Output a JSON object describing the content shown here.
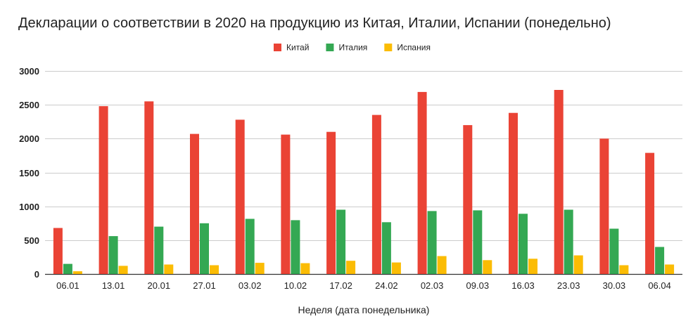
{
  "chart_data": {
    "type": "bar",
    "title": "Декларации о соответствии в 2020 на продукцию из Китая, Италии, Испании (понедельно)",
    "xlabel": "Неделя (дата понедельника)",
    "ylabel": "",
    "ylim": [
      0,
      3000
    ],
    "yticks": [
      0,
      500,
      1000,
      1500,
      2000,
      2500,
      3000
    ],
    "grid": true,
    "legend_position": "top-center",
    "categories": [
      "06.01",
      "13.01",
      "20.01",
      "27.01",
      "03.02",
      "10.02",
      "17.02",
      "24.02",
      "02.03",
      "09.03",
      "16.03",
      "23.03",
      "30.03",
      "06.04"
    ],
    "series": [
      {
        "name": "Китай",
        "color": "#ea4335",
        "values": [
          680,
          2480,
          2550,
          2070,
          2280,
          2060,
          2100,
          2350,
          2690,
          2200,
          2380,
          2720,
          2000,
          1790
        ]
      },
      {
        "name": "Италия",
        "color": "#34a853",
        "values": [
          150,
          560,
          700,
          750,
          815,
          795,
          950,
          765,
          930,
          940,
          890,
          950,
          670,
          400
        ]
      },
      {
        "name": "Испания",
        "color": "#fbbc04",
        "values": [
          40,
          120,
          140,
          130,
          165,
          160,
          195,
          170,
          265,
          205,
          225,
          275,
          130,
          140
        ]
      }
    ]
  }
}
